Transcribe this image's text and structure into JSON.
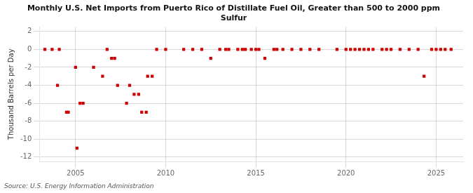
{
  "chart_data": {
    "type": "scatter",
    "title": "Monthly U.S. Net Imports from Puerto Rico of Distillate Fuel Oil, Greater than 500 to 2000 ppm\nSulfur",
    "ylabel": "Thousand Barrels per Day",
    "annotations": [
      "Source: U.S. Energy Information Administration"
    ],
    "color": "#cc0000",
    "marker": "square",
    "grid": true,
    "ylim": [
      -12.5,
      2.5
    ],
    "yticks": [
      2,
      0,
      -2,
      -4,
      -6,
      -8,
      -10,
      -12
    ],
    "xlim": [
      2003.0,
      2026.5
    ],
    "xticks": [
      2005,
      2010,
      2015,
      2020,
      2025
    ],
    "x": [
      2003.3,
      2003.7,
      2004.0,
      2004.1,
      2004.5,
      2004.6,
      2005.0,
      2005.08,
      2005.25,
      2005.42,
      2006.0,
      2006.5,
      2006.75,
      2007.0,
      2007.17,
      2007.33,
      2007.83,
      2008.0,
      2008.25,
      2008.5,
      2008.67,
      2008.92,
      2009.0,
      2009.25,
      2009.5,
      2010.0,
      2011.0,
      2011.5,
      2012.0,
      2012.5,
      2013.0,
      2013.33,
      2013.5,
      2014.0,
      2014.25,
      2014.42,
      2014.75,
      2015.0,
      2015.17,
      2015.5,
      2016.0,
      2016.17,
      2016.5,
      2017.0,
      2017.5,
      2018.0,
      2018.5,
      2019.5,
      2020.0,
      2020.25,
      2020.5,
      2020.75,
      2021.0,
      2021.25,
      2021.5,
      2022.0,
      2022.25,
      2022.5,
      2023.0,
      2023.5,
      2024.0,
      2024.33,
      2024.75,
      2025.0,
      2025.25,
      2025.5,
      2025.83
    ],
    "values": [
      0,
      0,
      -4,
      0,
      -7.0,
      -7.0,
      -2,
      -11,
      -6,
      -6,
      -2,
      -3,
      0,
      -1,
      -1,
      -4,
      -6,
      -4,
      -5,
      -5,
      -7,
      -7,
      -3,
      -3,
      0,
      0,
      0,
      0,
      0,
      -1,
      0,
      0,
      0,
      0,
      0,
      0,
      0,
      0,
      0,
      -1,
      0,
      0,
      0,
      0,
      0,
      0,
      0,
      0,
      0,
      0,
      0,
      0,
      0,
      0,
      0,
      0,
      0,
      0,
      0,
      0,
      0,
      -3,
      0,
      0,
      0,
      0,
      0
    ]
  }
}
